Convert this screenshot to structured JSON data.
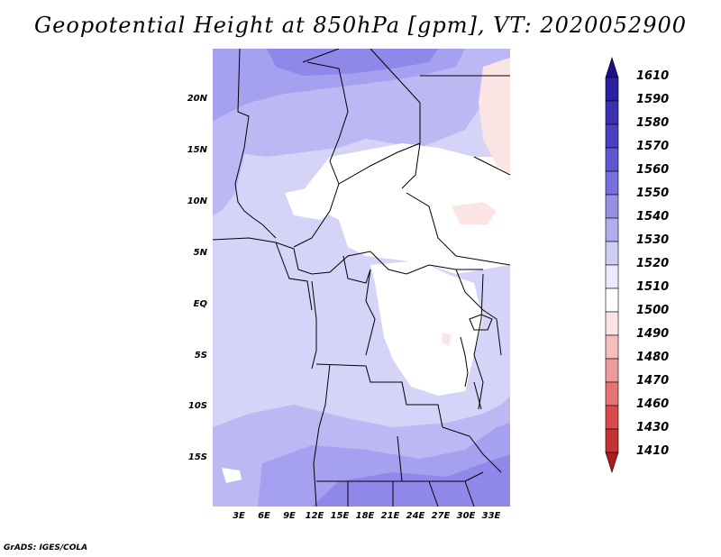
{
  "title": "Geopotential Height at 850hPa [gpm], VT: 2020052900",
  "credit": "GrADS: IGES/COLA",
  "lat_ticks": [
    "20N",
    "15N",
    "10N",
    "5N",
    "EQ",
    "5S",
    "10S",
    "15S"
  ],
  "lon_ticks": [
    "3E",
    "6E",
    "9E",
    "12E",
    "15E",
    "18E",
    "21E",
    "24E",
    "27E",
    "30E",
    "33E"
  ],
  "colorbar": {
    "labels": [
      "1610",
      "1590",
      "1580",
      "1570",
      "1560",
      "1550",
      "1540",
      "1530",
      "1520",
      "1510",
      "1500",
      "1490",
      "1480",
      "1470",
      "1460",
      "1430",
      "1410"
    ],
    "colors": [
      "#1a0e8c",
      "#2a20a0",
      "#3a30b0",
      "#4a40c0",
      "#5f58d0",
      "#7770dc",
      "#9590e6",
      "#b0acee",
      "#cfcdf6",
      "#eceafc",
      "#ffffff",
      "#fde4e4",
      "#f7bdbd",
      "#ef9a9a",
      "#e57373",
      "#d94b4b",
      "#c43434",
      "#a81c1c"
    ]
  },
  "map_legend_colors": {
    "c1610": "#1a0e8c",
    "c1560": "#8f88ea",
    "c1550": "#a6a0f0",
    "c1540": "#bdb8f4",
    "c1530": "#d6d3f8",
    "c1520": "#ffffff",
    "c1510": "#fbe4e4"
  }
}
